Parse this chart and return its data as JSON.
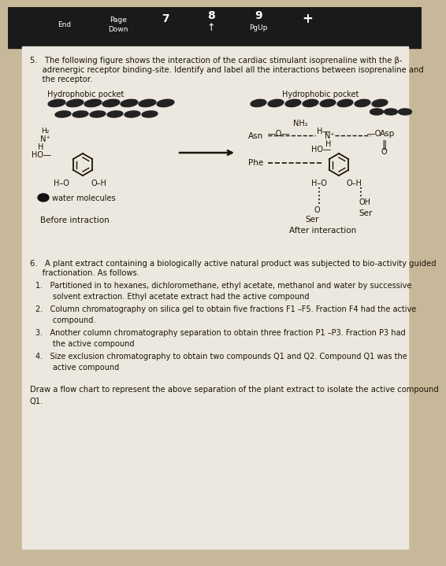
{
  "bg_outer": "#c8b89a",
  "paper_color": "#ede8df",
  "text_color": "#1a1505",
  "q5_line1": "5.   The following figure shows the interaction of the cardiac stimulant isoprenaline with the β-",
  "q5_line2": "     adrenergic receptor binding-site. Identify and label all the interactions between isoprenaline and",
  "q5_line3": "     the receptor.",
  "before_label": "Before intraction",
  "after_label": "After interaction",
  "hydrophobic_label": "Hydrophobic pocket",
  "water_label": "water molecules",
  "q6_line1": "6.   A plant extract containing a biologically active natural product was subjected to bio-activity guided",
  "q6_line2": "     fractionation. As follows.",
  "q6_item1": "1.   Partitioned in to hexanes, dichloromethane, ethyl acetate, methanol and water by successive\n       solvent extraction. Ethyl acetate extract had the active compound",
  "q6_item2": "2.   Column chromatography on silica gel to obtain five fractions F1 –F5. Fraction F4 had the active\n       compound.",
  "q6_item3": "3.   Another column chromatography separation to obtain three fraction P1 –P3. Fraction P3 had\n       the active compound",
  "q6_item4": "4.   Size exclusion chromatography to obtain two compounds Q1 and Q2. Compound Q1 was the\n       active compound",
  "draw_text": "Draw a flow chart to represent the above separation of the plant extract to isolate the active compound\nQ1."
}
